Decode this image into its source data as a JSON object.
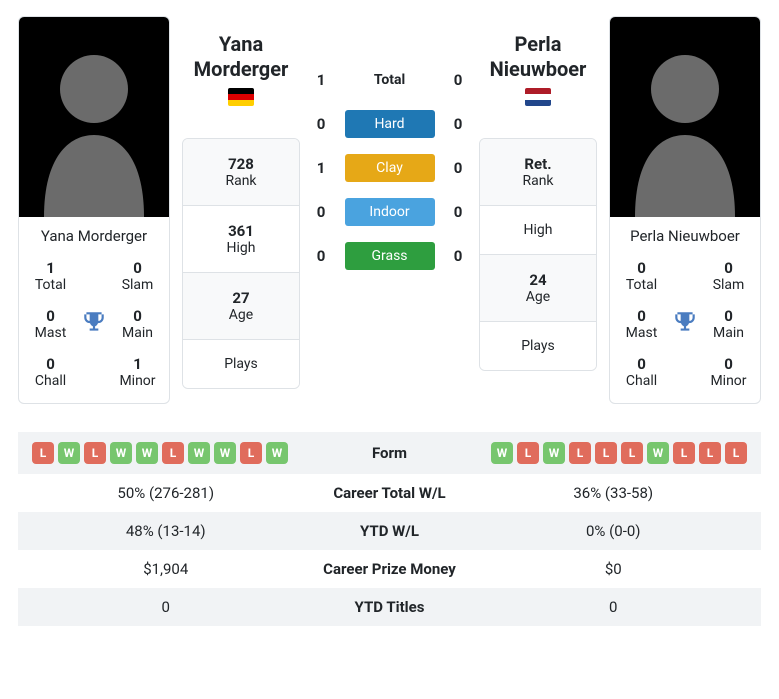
{
  "surfaces": {
    "total_label": "Total",
    "hard_label": "Hard",
    "clay_label": "Clay",
    "indoor_label": "Indoor",
    "grass_label": "Grass"
  },
  "h2h": {
    "total": {
      "p1": "1",
      "p2": "0"
    },
    "hard": {
      "p1": "0",
      "p2": "0"
    },
    "clay": {
      "p1": "1",
      "p2": "0"
    },
    "indoor": {
      "p1": "0",
      "p2": "0"
    },
    "grass": {
      "p1": "0",
      "p2": "0"
    }
  },
  "labels": {
    "rank": "Rank",
    "high": "High",
    "age": "Age",
    "plays": "Plays",
    "total": "Total",
    "slam": "Slam",
    "mast": "Mast",
    "main": "Main",
    "chall": "Chall",
    "minor": "Minor",
    "form": "Form",
    "career_wl": "Career Total W/L",
    "ytd_wl": "YTD W/L",
    "career_prize": "Career Prize Money",
    "ytd_titles": "YTD Titles"
  },
  "p1": {
    "name": "Yana Morderger",
    "name_line1": "Yana",
    "name_line2": "Morderger",
    "flag_class": "flag-de",
    "rank": "728",
    "high": "361",
    "age": "27",
    "plays": "",
    "titles": {
      "total": "1",
      "slam": "0",
      "mast": "0",
      "main": "0",
      "chall": "0",
      "minor": "1"
    },
    "form": [
      "L",
      "W",
      "L",
      "W",
      "W",
      "L",
      "W",
      "W",
      "L",
      "W"
    ],
    "career_wl": "50% (276-281)",
    "ytd_wl": "48% (13-14)",
    "career_prize": "$1,904",
    "ytd_titles": "0"
  },
  "p2": {
    "name": "Perla Nieuwboer",
    "name_line1": "Perla",
    "name_line2": "Nieuwboer",
    "flag_class": "flag-nl",
    "rank": "Ret.",
    "high": "",
    "age": "24",
    "plays": "",
    "titles": {
      "total": "0",
      "slam": "0",
      "mast": "0",
      "main": "0",
      "chall": "0",
      "minor": "0"
    },
    "form": [
      "W",
      "L",
      "W",
      "L",
      "L",
      "L",
      "W",
      "L",
      "L",
      "L"
    ],
    "career_wl": "36% (33-58)",
    "ytd_wl": "0% (0-0)",
    "career_prize": "$0",
    "ytd_titles": "0"
  }
}
